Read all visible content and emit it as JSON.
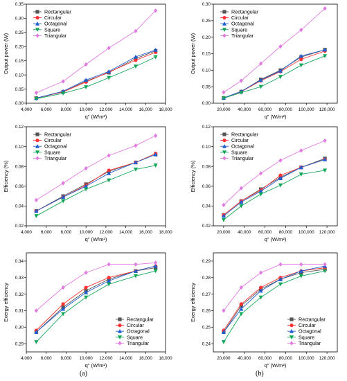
{
  "panel_labels": {
    "a": "(a)",
    "b": "(b)"
  },
  "colors": {
    "Rectangular": "#555555",
    "Circular": "#ff3333",
    "Octagonal": "#1f5fd1",
    "Square": "#13a65a",
    "Triangular": "#e07be0"
  },
  "markers": {
    "Rectangular": "square",
    "Circular": "circle",
    "Octagonal": "triangle-up",
    "Square": "triangle-down",
    "Triangular": "diamond"
  },
  "chart_data": [
    {
      "type": "line",
      "panel": "a",
      "row": 0,
      "xlabel": "q\" (W/m²)",
      "ylabel": "Output power (W)",
      "xlim": [
        4000,
        18000
      ],
      "ylim": [
        0,
        0.35
      ],
      "xticks": [
        4000,
        6000,
        8000,
        10000,
        12000,
        14000,
        16000,
        18000
      ],
      "xtick_labels": [
        "4,000",
        "6,000",
        "8,000",
        "10,000",
        "12,000",
        "14,000",
        "16,000",
        "18,000"
      ],
      "yticks": [
        0,
        0.05,
        0.1,
        0.15,
        0.2,
        0.25,
        0.3,
        0.35
      ],
      "ytick_labels": [
        "0.00",
        "0.05",
        "0.10",
        "0.15",
        "0.20",
        "0.25",
        "0.30",
        "0.35"
      ],
      "legend": "top-left",
      "x": [
        5000,
        7700,
        10000,
        12300,
        15000,
        17000
      ],
      "series": [
        {
          "name": "Rectangular",
          "values": [
            0.018,
            0.04,
            0.078,
            0.108,
            0.158,
            0.185
          ]
        },
        {
          "name": "Circular",
          "values": [
            0.018,
            0.04,
            0.075,
            0.11,
            0.152,
            0.18
          ]
        },
        {
          "name": "Octagonal",
          "values": [
            0.018,
            0.042,
            0.082,
            0.112,
            0.164,
            0.188
          ]
        },
        {
          "name": "Square",
          "values": [
            0.016,
            0.035,
            0.057,
            0.09,
            0.13,
            0.163
          ]
        },
        {
          "name": "Triangular",
          "values": [
            0.037,
            0.077,
            0.137,
            0.195,
            0.255,
            0.327
          ]
        }
      ]
    },
    {
      "type": "line",
      "panel": "b",
      "row": 0,
      "xlabel": "q\" (W/m²)",
      "ylabel": "Output power (W)",
      "xlim": [
        10000,
        130000
      ],
      "ylim": [
        0,
        0.3
      ],
      "xticks": [
        20000,
        40000,
        60000,
        80000,
        100000,
        120000
      ],
      "xtick_labels": [
        "20,000",
        "40,000",
        "60,000",
        "80,000",
        "100,000",
        "120,000"
      ],
      "yticks": [
        0,
        0.05,
        0.1,
        0.15,
        0.2,
        0.25,
        0.3
      ],
      "ytick_labels": [
        "0.00",
        "0.05",
        "0.10",
        "0.15",
        "0.20",
        "0.25",
        "0.30"
      ],
      "legend": "top-left",
      "x": [
        20000,
        37000,
        56000,
        75000,
        95000,
        118000
      ],
      "series": [
        {
          "name": "Rectangular",
          "values": [
            0.016,
            0.035,
            0.072,
            0.1,
            0.14,
            0.162
          ]
        },
        {
          "name": "Circular",
          "values": [
            0.016,
            0.035,
            0.068,
            0.096,
            0.133,
            0.158
          ]
        },
        {
          "name": "Octagonal",
          "values": [
            0.016,
            0.036,
            0.07,
            0.098,
            0.143,
            0.162
          ]
        },
        {
          "name": "Square",
          "values": [
            0.015,
            0.032,
            0.05,
            0.08,
            0.115,
            0.143
          ]
        },
        {
          "name": "Triangular",
          "values": [
            0.033,
            0.068,
            0.12,
            0.172,
            0.222,
            0.287
          ]
        }
      ]
    },
    {
      "type": "line",
      "panel": "a",
      "row": 1,
      "xlabel": "q\" (W/m²)",
      "ylabel": "Efficiency (%)",
      "xlim": [
        4000,
        18000
      ],
      "ylim": [
        0.02,
        0.12
      ],
      "xticks": [
        4000,
        6000,
        8000,
        10000,
        12000,
        14000,
        16000,
        18000
      ],
      "xtick_labels": [
        "4,000",
        "6,000",
        "8,000",
        "10,000",
        "12,000",
        "14,000",
        "16,000",
        "18,000"
      ],
      "yticks": [
        0.02,
        0.04,
        0.06,
        0.08,
        0.1,
        0.12
      ],
      "ytick_labels": [
        "0.02",
        "0.04",
        "0.06",
        "0.08",
        "0.10",
        "0.12"
      ],
      "legend": "top-left",
      "x": [
        5000,
        7700,
        10000,
        12300,
        15000,
        17000
      ],
      "series": [
        {
          "name": "Rectangular",
          "values": [
            0.035,
            0.05,
            0.062,
            0.075,
            0.084,
            0.092
          ]
        },
        {
          "name": "Circular",
          "values": [
            0.035,
            0.049,
            0.061,
            0.076,
            0.084,
            0.093
          ]
        },
        {
          "name": "Octagonal",
          "values": [
            0.035,
            0.049,
            0.06,
            0.073,
            0.084,
            0.092
          ]
        },
        {
          "name": "Square",
          "values": [
            0.03,
            0.045,
            0.057,
            0.066,
            0.077,
            0.081
          ]
        },
        {
          "name": "Triangular",
          "values": [
            0.046,
            0.063,
            0.078,
            0.091,
            0.101,
            0.111
          ]
        }
      ]
    },
    {
      "type": "line",
      "panel": "b",
      "row": 1,
      "xlabel": "q\" (W/m²)",
      "ylabel": "Efficiency (%)",
      "xlim": [
        10000,
        130000
      ],
      "ylim": [
        0.02,
        0.12
      ],
      "xticks": [
        20000,
        40000,
        60000,
        80000,
        100000,
        120000
      ],
      "xtick_labels": [
        "20,000",
        "40,000",
        "60,000",
        "80,000",
        "100,000",
        "120,000"
      ],
      "yticks": [
        0.02,
        0.04,
        0.06,
        0.08,
        0.1,
        0.12
      ],
      "ytick_labels": [
        "0.02",
        "0.04",
        "0.06",
        "0.08",
        "0.10",
        "0.12"
      ],
      "legend": "top-left",
      "x": [
        20000,
        37000,
        56000,
        75000,
        95000,
        118000
      ],
      "series": [
        {
          "name": "Rectangular",
          "values": [
            0.031,
            0.045,
            0.057,
            0.069,
            0.079,
            0.088
          ]
        },
        {
          "name": "Circular",
          "values": [
            0.031,
            0.045,
            0.056,
            0.071,
            0.079,
            0.087
          ]
        },
        {
          "name": "Octagonal",
          "values": [
            0.03,
            0.044,
            0.055,
            0.068,
            0.079,
            0.087
          ]
        },
        {
          "name": "Square",
          "values": [
            0.026,
            0.04,
            0.052,
            0.061,
            0.072,
            0.076
          ]
        },
        {
          "name": "Triangular",
          "values": [
            0.041,
            0.058,
            0.073,
            0.086,
            0.096,
            0.106
          ]
        }
      ]
    },
    {
      "type": "line",
      "panel": "a",
      "row": 2,
      "xlabel": "q\" (W/m²)",
      "ylabel": "Exergy efficiency",
      "xlim": [
        4000,
        18000
      ],
      "ylim": [
        0.285,
        0.345
      ],
      "xticks": [
        4000,
        6000,
        8000,
        10000,
        12000,
        14000,
        16000,
        18000
      ],
      "xtick_labels": [
        "4,000",
        "6,000",
        "8,000",
        "10,000",
        "12,000",
        "14,000",
        "16,000",
        "18,000"
      ],
      "yticks": [
        0.29,
        0.3,
        0.31,
        0.32,
        0.33,
        0.34
      ],
      "ytick_labels": [
        "0.29",
        "0.30",
        "0.31",
        "0.32",
        "0.33",
        "0.34"
      ],
      "legend": "bottom-right",
      "x": [
        5000,
        7700,
        10000,
        12300,
        15000,
        17000
      ],
      "series": [
        {
          "name": "Rectangular",
          "values": [
            0.297,
            0.312,
            0.322,
            0.329,
            0.334,
            0.336
          ]
        },
        {
          "name": "Circular",
          "values": [
            0.298,
            0.314,
            0.324,
            0.33,
            0.334,
            0.337
          ]
        },
        {
          "name": "Octagonal",
          "values": [
            0.297,
            0.311,
            0.321,
            0.328,
            0.334,
            0.337
          ]
        },
        {
          "name": "Square",
          "values": [
            0.291,
            0.308,
            0.318,
            0.326,
            0.331,
            0.334
          ]
        },
        {
          "name": "Triangular",
          "values": [
            0.31,
            0.324,
            0.333,
            0.338,
            0.338,
            0.339
          ]
        }
      ]
    },
    {
      "type": "line",
      "panel": "b",
      "row": 2,
      "xlabel": "q\" (W/m²)",
      "ylabel": "Exergy efficiency",
      "xlim": [
        10000,
        130000
      ],
      "ylim": [
        0.235,
        0.295
      ],
      "xticks": [
        20000,
        40000,
        60000,
        80000,
        100000,
        120000
      ],
      "xtick_labels": [
        "20,000",
        "40,000",
        "60,000",
        "80,000",
        "100,000",
        "120,000"
      ],
      "yticks": [
        0.24,
        0.25,
        0.26,
        0.27,
        0.28,
        0.29
      ],
      "ytick_labels": [
        "0.24",
        "0.25",
        "0.26",
        "0.27",
        "0.28",
        "0.29"
      ],
      "legend": "bottom-right",
      "x": [
        20000,
        37000,
        56000,
        75000,
        95000,
        118000
      ],
      "series": [
        {
          "name": "Rectangular",
          "values": [
            0.247,
            0.263,
            0.273,
            0.279,
            0.283,
            0.285
          ]
        },
        {
          "name": "Circular",
          "values": [
            0.248,
            0.264,
            0.274,
            0.28,
            0.284,
            0.286
          ]
        },
        {
          "name": "Octagonal",
          "values": [
            0.247,
            0.261,
            0.272,
            0.279,
            0.284,
            0.287
          ]
        },
        {
          "name": "Square",
          "values": [
            0.241,
            0.258,
            0.268,
            0.276,
            0.281,
            0.284
          ]
        },
        {
          "name": "Triangular",
          "values": [
            0.26,
            0.274,
            0.283,
            0.288,
            0.288,
            0.288
          ]
        }
      ]
    }
  ]
}
